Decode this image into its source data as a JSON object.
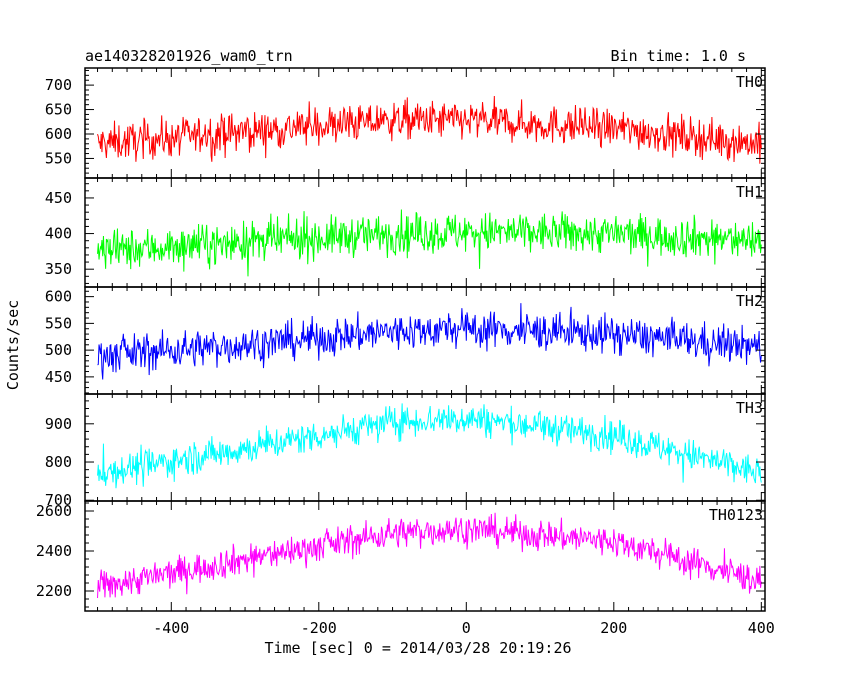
{
  "header": {
    "title": "ae140328201926_wam0_trn",
    "bin_time": "Bin time: 1.0 s"
  },
  "chart_data": {
    "type": "line",
    "title": "ae140328201926_wam0_trn",
    "ylabel": "Counts/sec",
    "xlabel": "Time [sec] 0 = 2014/03/28 20:19:26",
    "xlim": [
      -517,
      405
    ],
    "x_ticks": [
      -400,
      -200,
      0,
      200,
      400
    ],
    "bin_seconds": 1.0,
    "x_start": -500,
    "x_end": 400,
    "panels": [
      {
        "name": "TH0",
        "color": "#ff0000",
        "ylim": [
          510,
          735
        ],
        "y_ticks": [
          550,
          600,
          650,
          700
        ],
        "trend_x": [
          -500,
          -300,
          -100,
          0,
          200,
          400
        ],
        "trend_y": [
          580,
          605,
          628,
          628,
          612,
          580
        ],
        "noise_amplitude": 28
      },
      {
        "name": "TH1",
        "color": "#00ff00",
        "ylim": [
          325,
          478
        ],
        "y_ticks": [
          350,
          400,
          450
        ],
        "trend_x": [
          -500,
          -300,
          -100,
          0,
          200,
          400
        ],
        "trend_y": [
          375,
          388,
          400,
          402,
          400,
          390
        ],
        "noise_amplitude": 20
      },
      {
        "name": "TH2",
        "color": "#0000ff",
        "ylim": [
          418,
          618
        ],
        "y_ticks": [
          450,
          500,
          550,
          600
        ],
        "trend_x": [
          -500,
          -300,
          -100,
          0,
          200,
          400
        ],
        "trend_y": [
          490,
          510,
          535,
          540,
          530,
          505
        ],
        "noise_amplitude": 25
      },
      {
        "name": "TH3",
        "color": "#00ffff",
        "ylim": [
          698,
          978
        ],
        "y_ticks": [
          700,
          800,
          900
        ],
        "trend_x": [
          -500,
          -300,
          -100,
          0,
          200,
          400
        ],
        "trend_y": [
          770,
          835,
          905,
          915,
          870,
          770
        ],
        "noise_amplitude": 30
      },
      {
        "name": "TH0123",
        "color": "#ff00ff",
        "ylim": [
          2100,
          2650
        ],
        "y_ticks": [
          2200,
          2400,
          2600
        ],
        "trend_x": [
          -500,
          -300,
          -100,
          0,
          200,
          400
        ],
        "trend_y": [
          2220,
          2360,
          2490,
          2510,
          2450,
          2250
        ],
        "noise_amplitude": 55
      }
    ]
  }
}
